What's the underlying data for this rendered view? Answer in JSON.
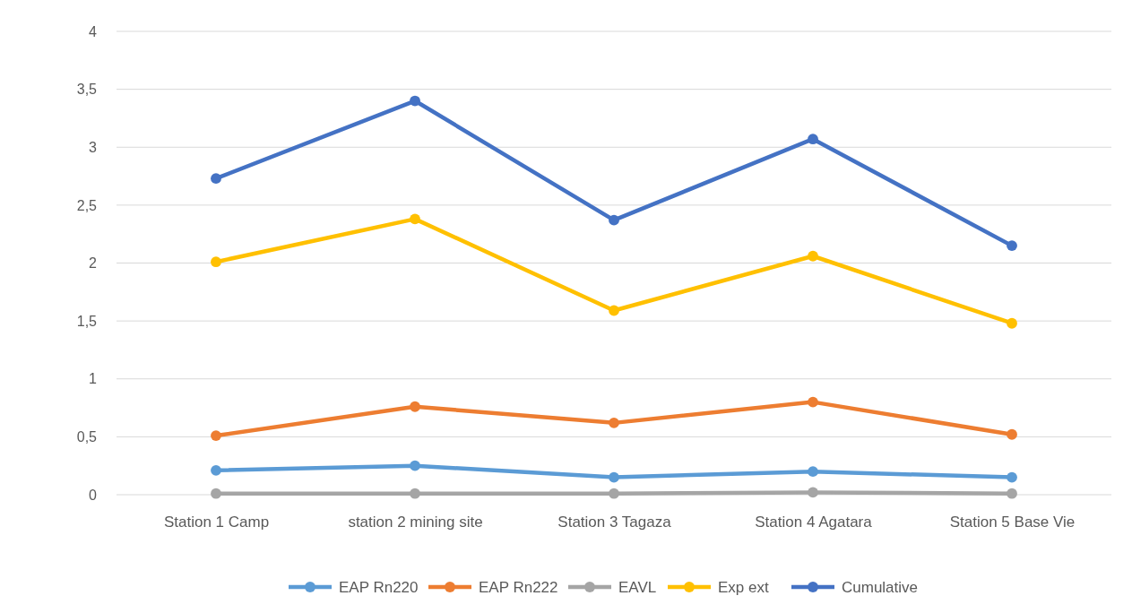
{
  "chart_data": {
    "type": "line",
    "categories": [
      "Station 1 Camp",
      "station 2 mining site",
      "Station 3 Tagaza",
      "Station 4 Agatara",
      "Station 5 Base Vie"
    ],
    "series": [
      {
        "name": "EAP Rn220",
        "color": "#5b9bd5",
        "values": [
          0.21,
          0.25,
          0.15,
          0.2,
          0.15
        ]
      },
      {
        "name": "EAP Rn222",
        "color": "#ed7d31",
        "values": [
          0.51,
          0.76,
          0.62,
          0.8,
          0.52
        ]
      },
      {
        "name": "EAVL",
        "color": "#a5a5a5",
        "values": [
          0.01,
          0.01,
          0.01,
          0.02,
          0.01
        ]
      },
      {
        "name": "Exp ext",
        "color": "#ffc000",
        "values": [
          2.01,
          2.38,
          1.59,
          2.06,
          1.48
        ]
      },
      {
        "name": "Cumulative",
        "color": "#4472c4",
        "values": [
          2.73,
          3.4,
          2.37,
          3.07,
          2.15
        ]
      }
    ],
    "ylim": [
      0,
      4
    ],
    "yticks": [
      0,
      {
        "value": 0.5,
        "label": "0,5"
      },
      1,
      {
        "value": 1.5,
        "label": "1,5"
      },
      2,
      {
        "value": 2.5,
        "label": "2,5"
      },
      3,
      {
        "value": 3.5,
        "label": "3,5"
      },
      4
    ],
    "grid": "y",
    "legend": "bottom",
    "marker": "circle",
    "line_style": "solid"
  }
}
